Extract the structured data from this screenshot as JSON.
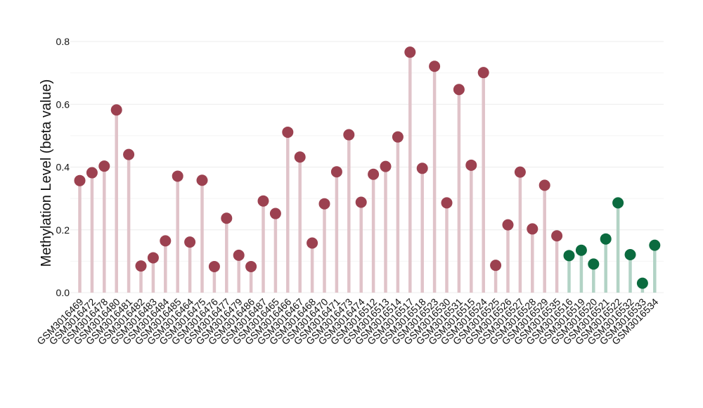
{
  "chart_data": {
    "type": "lollipop",
    "title": "",
    "xlabel": "",
    "ylabel": "Methylation Level (beta value)",
    "ylim": [
      0,
      0.8
    ],
    "yticks": [
      "0.0",
      "0.2",
      "0.4",
      "0.6",
      "0.8"
    ],
    "grid": true,
    "legend": "none",
    "colors": {
      "group_red_point": "#9c4150",
      "group_red_stem": "#e0c3c9",
      "group_green_point": "#0b6b3f",
      "group_green_stem": "#b2d3c5",
      "grid": "#ececec"
    },
    "categories": [
      "GSM3016469",
      "GSM3016472",
      "GSM3016478",
      "GSM3016480",
      "GSM3016481",
      "GSM3016482",
      "GSM3016483",
      "GSM3016484",
      "GSM3016485",
      "GSM3016464",
      "GSM3016475",
      "GSM3016476",
      "GSM3016477",
      "GSM3016479",
      "GSM3016486",
      "GSM3016487",
      "GSM3016465",
      "GSM3016466",
      "GSM3016467",
      "GSM3016468",
      "GSM3016470",
      "GSM3016471",
      "GSM3016473",
      "GSM3016474",
      "GSM3016512",
      "GSM3016513",
      "GSM3016514",
      "GSM3016517",
      "GSM3016518",
      "GSM3016523",
      "GSM3016530",
      "GSM3016531",
      "GSM3016515",
      "GSM3016524",
      "GSM3016525",
      "GSM3016526",
      "GSM3016527",
      "GSM3016528",
      "GSM3016529",
      "GSM3016535",
      "GSM3016516",
      "GSM3016519",
      "GSM3016520",
      "GSM3016521",
      "GSM3016522",
      "GSM3016532",
      "GSM3016533",
      "GSM3016534"
    ],
    "values": [
      0.357,
      0.382,
      0.403,
      0.582,
      0.44,
      0.085,
      0.111,
      0.165,
      0.371,
      0.161,
      0.358,
      0.083,
      0.237,
      0.119,
      0.083,
      0.292,
      0.252,
      0.511,
      0.432,
      0.158,
      0.283,
      0.385,
      0.503,
      0.288,
      0.377,
      0.402,
      0.496,
      0.766,
      0.396,
      0.721,
      0.286,
      0.647,
      0.406,
      0.701,
      0.087,
      0.216,
      0.384,
      0.203,
      0.342,
      0.181,
      0.118,
      0.135,
      0.091,
      0.171,
      0.286,
      0.121,
      0.03,
      0.151
    ],
    "groups": [
      "red",
      "red",
      "red",
      "red",
      "red",
      "red",
      "red",
      "red",
      "red",
      "red",
      "red",
      "red",
      "red",
      "red",
      "red",
      "red",
      "red",
      "red",
      "red",
      "red",
      "red",
      "red",
      "red",
      "red",
      "red",
      "red",
      "red",
      "red",
      "red",
      "red",
      "red",
      "red",
      "red",
      "red",
      "red",
      "red",
      "red",
      "red",
      "red",
      "red",
      "green",
      "green",
      "green",
      "green",
      "green",
      "green",
      "green",
      "green"
    ]
  }
}
